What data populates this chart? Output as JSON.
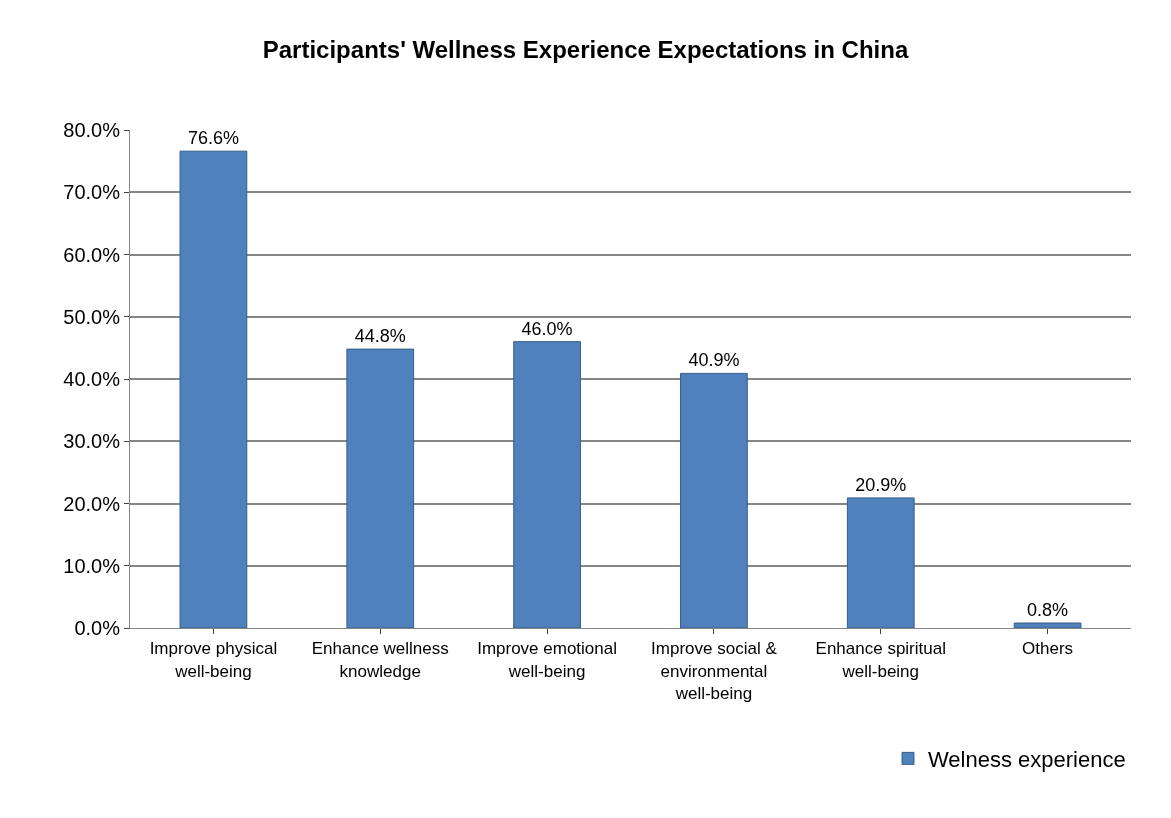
{
  "chart_data": {
    "type": "bar",
    "title": "Participants' Wellness Experience Expectations in China",
    "categories": [
      "Improve physical well-being",
      "Enhance wellness knowledge",
      "Improve emotional well-being",
      "Improve social & environmental well-being",
      "Enhance spiritual well-being",
      "Others"
    ],
    "series": [
      {
        "name": "Welness experience",
        "color": "#4f81bd",
        "values": [
          76.6,
          44.8,
          46.0,
          40.9,
          20.9,
          0.8
        ],
        "value_labels": [
          "76.6%",
          "44.8%",
          "46.0%",
          "40.9%",
          "20.9%",
          "0.8%"
        ]
      }
    ],
    "ylim": [
      0,
      80
    ],
    "yticks": [
      {
        "value": 0,
        "label": "0.0%"
      },
      {
        "value": 10,
        "label": "10.0%"
      },
      {
        "value": 20,
        "label": "20.0%"
      },
      {
        "value": 30,
        "label": "30.0%"
      },
      {
        "value": 40,
        "label": "40.0%"
      },
      {
        "value": 50,
        "label": "50.0%"
      },
      {
        "value": 60,
        "label": "60.0%"
      },
      {
        "value": 70,
        "label": "70.0%"
      },
      {
        "value": 80,
        "label": "80.0%"
      }
    ],
    "grid": "y",
    "legend": "bottom right"
  }
}
